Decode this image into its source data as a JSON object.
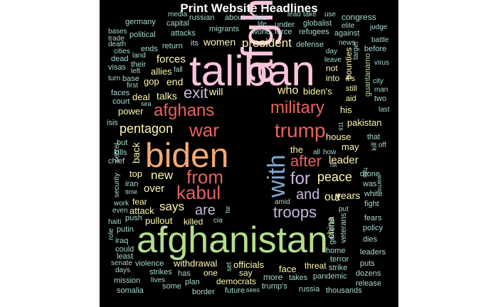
{
  "title": "Print Website Headlines",
  "palette": {
    "pink": "#FBC4DC",
    "green": "#B3DD8D",
    "orange": "#F4A86F",
    "red": "#E8625B",
    "blue": "#7FA7CB",
    "lavender": "#C9B7DE",
    "yellow": "#FFF8B0",
    "teal": "#A8D9D0",
    "gray": "#A6A6A6",
    "white": "#E6E6E6"
  },
  "words": [
    "taliban",
    "afghan",
    "afghanistan",
    "biden",
    "trump",
    "with",
    "war",
    "afghans",
    "military",
    "from",
    "kabul",
    "for",
    "after",
    "exit",
    "pentagon",
    "troops",
    "are",
    "and",
    "peace",
    "president",
    "says",
    "leader",
    "over",
    "new",
    "years",
    "who",
    "forces",
    "women",
    "out",
    "biden's",
    "will",
    "talks",
    "house",
    "pakistan",
    "may",
    "the",
    "end",
    "back",
    "allies",
    "gop",
    "deal",
    "top",
    "power",
    "his",
    "china",
    "fear",
    "attack",
    "pullout",
    "killed",
    "withdrawal",
    "officials",
    "face",
    "say",
    "democrats",
    "threat",
    "one",
    "has",
    "plan",
    "border",
    "future",
    "somalia",
    "mission",
    "strikes",
    "violence",
    "some",
    "more",
    "takes",
    "trump's",
    "russia",
    "thousands",
    "pandemic",
    "dozens",
    "release",
    "leaders",
    "dies",
    "policy",
    "fears",
    "fight",
    "white",
    "was",
    "drone",
    "into",
    "not",
    "bounties",
    "it's",
    "aid",
    "still",
    "guantanamo",
    "germany",
    "media",
    "russian",
    "about",
    "crisis",
    "lead",
    "take",
    "use",
    "congress",
    "capital",
    "life",
    "under",
    "globalist",
    "elite",
    "judge",
    "bases",
    "trade",
    "political",
    "attacks",
    "migrants",
    "world",
    "force",
    "refugees",
    "against",
    "death",
    "its",
    "return",
    "defense",
    "day",
    "news",
    "battle",
    "cities",
    "dead",
    "land",
    "their",
    "ends",
    "leave",
    "before",
    "visas",
    "left",
    "fall",
    "virus",
    "turn",
    "base",
    "city",
    "first",
    "man",
    "faces",
    "sea",
    "two",
    "court",
    "last",
    "isis",
    "kill",
    "off",
    "but",
    "kills",
    "secret",
    "chief",
    "all",
    "how",
    "hit",
    "security",
    "iran",
    "time",
    "warns",
    "work",
    "even",
    "haiti",
    "push",
    "putin",
    "role",
    "iraq",
    "could",
    "least",
    "senate",
    "days",
    "lives",
    "cia",
    "far",
    "amid",
    "put",
    "general",
    "veterans",
    "home",
    "terror",
    "strike",
    "puts",
    "set",
    "that",
    "sees",
    "911",
    "target",
    "hits"
  ]
}
